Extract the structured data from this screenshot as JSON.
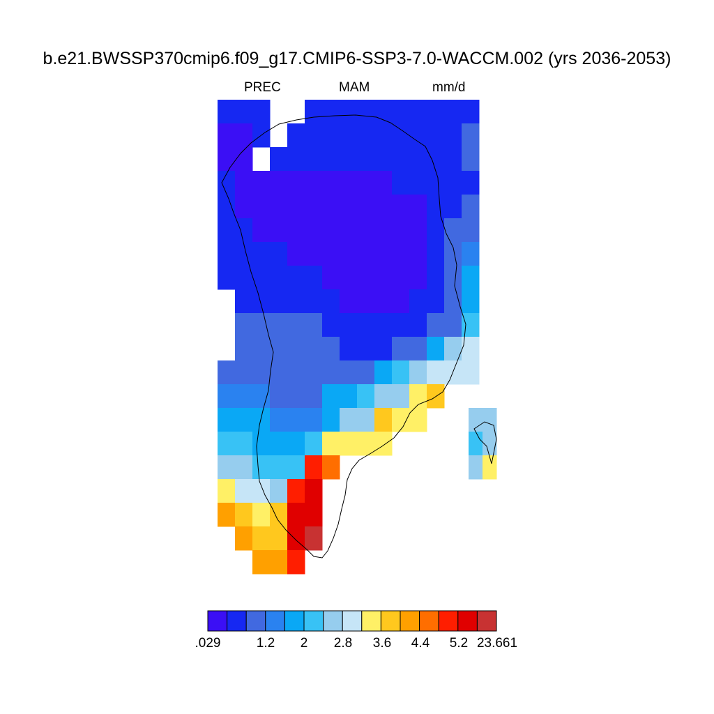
{
  "title": "b.e21.BWSSP370cmip6.f09_g17.CMIP6-SSP3-7.0-WACCM.002 (yrs 2036-2053)",
  "subtitle_left": "PREC",
  "subtitle_center": "MAM",
  "subtitle_right": "mm/d",
  "colorbar": {
    "colors": [
      "#3b0ff5",
      "#1628f2",
      "#4169e0",
      "#2a82f0",
      "#0aa8f5",
      "#38c2f5",
      "#96cdee",
      "#c6e5f7",
      "#fff066",
      "#ffc81e",
      "#ffa000",
      "#ff6e00",
      "#ff1e00",
      "#e00000",
      "#c83232"
    ],
    "labels": [
      ".029",
      "1.2",
      "2",
      "2.8",
      "3.6",
      "4.4",
      "5.2",
      "23.661"
    ]
  },
  "chart_data": {
    "type": "heatmap",
    "variable": "PREC",
    "season": "MAM",
    "units": "mm/d",
    "levels": [
      0.029,
      0.8,
      1.2,
      1.6,
      2,
      2.4,
      2.8,
      3.2,
      3.6,
      4,
      4.4,
      4.8,
      5.2,
      5.6,
      23.661
    ],
    "color_index_rows": [
      [
        1,
        1,
        1,
        -1,
        -1,
        1,
        1,
        1,
        1,
        1,
        1,
        1,
        1,
        1,
        1
      ],
      [
        0,
        0,
        1,
        -1,
        1,
        1,
        1,
        1,
        1,
        1,
        1,
        1,
        1,
        1,
        2
      ],
      [
        0,
        0,
        -1,
        1,
        1,
        1,
        1,
        1,
        1,
        1,
        1,
        1,
        1,
        1,
        2
      ],
      [
        1,
        0,
        0,
        0,
        0,
        0,
        0,
        0,
        0,
        0,
        1,
        1,
        1,
        1,
        1
      ],
      [
        1,
        0,
        0,
        0,
        0,
        0,
        0,
        0,
        0,
        0,
        0,
        0,
        1,
        1,
        2
      ],
      [
        1,
        1,
        0,
        0,
        0,
        0,
        0,
        0,
        0,
        0,
        0,
        0,
        1,
        2,
        2
      ],
      [
        1,
        1,
        1,
        1,
        0,
        0,
        0,
        0,
        0,
        0,
        0,
        0,
        1,
        2,
        3
      ],
      [
        1,
        1,
        1,
        1,
        1,
        1,
        0,
        0,
        0,
        0,
        0,
        0,
        1,
        2,
        4
      ],
      [
        -1,
        1,
        1,
        1,
        1,
        1,
        1,
        0,
        0,
        0,
        0,
        1,
        1,
        2,
        4
      ],
      [
        -1,
        2,
        2,
        2,
        2,
        2,
        1,
        1,
        1,
        1,
        1,
        1,
        2,
        2,
        5
      ],
      [
        -1,
        2,
        2,
        2,
        2,
        2,
        2,
        1,
        1,
        1,
        2,
        2,
        4,
        6,
        7
      ],
      [
        2,
        2,
        2,
        2,
        2,
        2,
        2,
        2,
        2,
        4,
        5,
        6,
        7,
        7,
        7
      ],
      [
        3,
        3,
        3,
        2,
        2,
        2,
        4,
        4,
        5,
        6,
        6,
        8,
        9,
        -1,
        -1
      ],
      [
        4,
        4,
        4,
        3,
        3,
        3,
        4,
        6,
        6,
        9,
        8,
        8,
        -1,
        -1,
        -1
      ],
      [
        5,
        5,
        4,
        4,
        4,
        5,
        8,
        8,
        8,
        8,
        -1,
        -1,
        -1,
        -1,
        -1
      ],
      [
        6,
        6,
        5,
        5,
        5,
        12,
        11,
        -1,
        -1,
        -1,
        -1,
        -1,
        -1,
        -1,
        -1
      ],
      [
        8,
        7,
        7,
        6,
        12,
        13,
        -1,
        -1,
        -1,
        -1,
        -1,
        -1,
        -1,
        -1,
        -1
      ],
      [
        10,
        9,
        8,
        9,
        13,
        13,
        -1,
        -1,
        -1,
        -1,
        -1,
        -1,
        -1,
        -1,
        -1
      ],
      [
        -1,
        10,
        9,
        9,
        13,
        14,
        -1,
        -1,
        -1,
        -1,
        -1,
        -1,
        -1,
        -1,
        -1
      ],
      [
        -1,
        -1,
        10,
        10,
        12,
        -1,
        -1,
        -1,
        -1,
        -1,
        -1,
        -1,
        -1,
        -1,
        -1
      ]
    ],
    "island_rows": [
      [
        6,
        6
      ],
      [
        5,
        6
      ],
      [
        6,
        8
      ]
    ]
  }
}
